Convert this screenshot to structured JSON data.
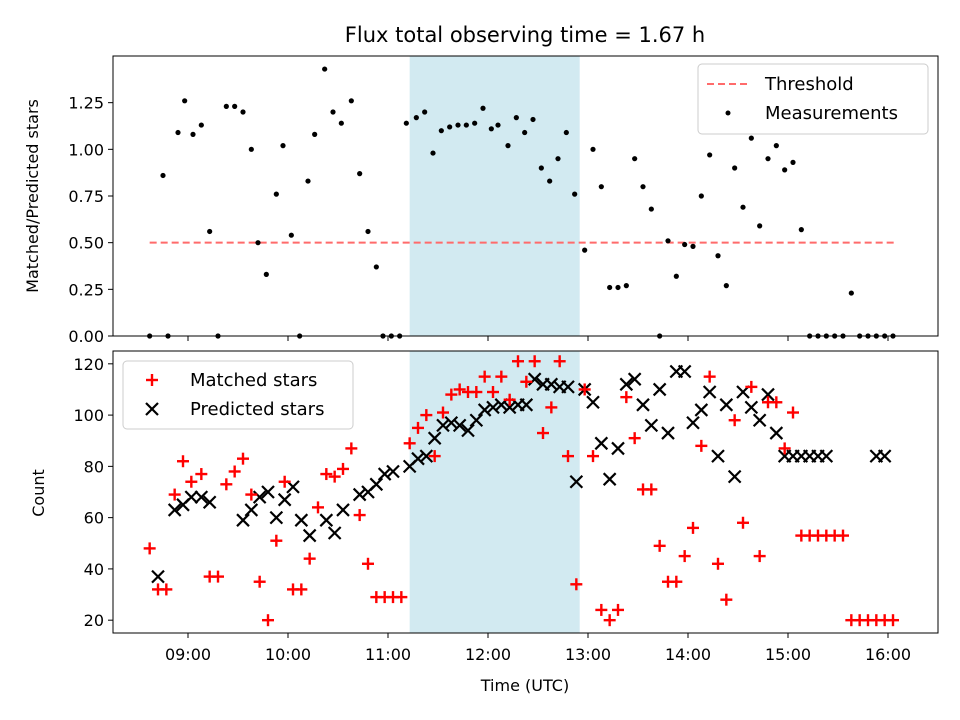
{
  "chart_data": [
    {
      "type": "scatter",
      "title": "Flux total observing time = 1.67 h",
      "xlabel": "",
      "ylabel": "Matched/Predicted stars",
      "xlim": [
        "08:15",
        "16:30"
      ],
      "ylim": [
        0,
        1.5
      ],
      "yticks": [
        0,
        0.25,
        0.5,
        0.75,
        1.0,
        1.25
      ],
      "ytick_labels": [
        "0.00",
        "0.25",
        "0.50",
        "0.75",
        "1.00",
        "1.25"
      ],
      "shaded_region": {
        "x0": "11:13",
        "x1": "12:55",
        "color": "#add8e6"
      },
      "legend_position": "top-right",
      "threshold": {
        "name": "Threshold",
        "value": 0.5,
        "x0": "08:37",
        "x1": "16:05",
        "color": "#ff6b6b",
        "style": "dashed"
      },
      "series": [
        {
          "name": "Measurements",
          "color": "#000000",
          "marker": "dot",
          "x": [
            "08:37",
            "08:45",
            "08:48",
            "08:54",
            "08:58",
            "09:03",
            "09:08",
            "09:13",
            "09:18",
            "09:23",
            "09:28",
            "09:33",
            "09:38",
            "09:42",
            "09:47",
            "09:53",
            "09:57",
            "10:02",
            "10:07",
            "10:12",
            "10:16",
            "10:22",
            "10:27",
            "10:32",
            "10:38",
            "10:43",
            "10:48",
            "10:53",
            "10:57",
            "11:02",
            "11:07",
            "11:11",
            "11:17",
            "11:22",
            "11:27",
            "11:32",
            "11:37",
            "11:42",
            "11:47",
            "11:52",
            "11:57",
            "12:02",
            "12:06",
            "12:12",
            "12:17",
            "12:22",
            "12:27",
            "12:32",
            "12:37",
            "12:42",
            "12:47",
            "12:52",
            "12:58",
            "13:03",
            "13:08",
            "13:13",
            "13:18",
            "13:23",
            "13:28",
            "13:33",
            "13:38",
            "13:43",
            "13:48",
            "13:53",
            "13:58",
            "14:03",
            "14:08",
            "14:13",
            "14:18",
            "14:23",
            "14:28",
            "14:33",
            "14:38",
            "14:43",
            "14:48",
            "14:53",
            "14:58",
            "15:03",
            "15:08",
            "15:13",
            "15:18",
            "15:23",
            "15:28",
            "15:33",
            "15:38",
            "15:43",
            "15:48",
            "15:53",
            "15:58",
            "16:03"
          ],
          "values": [
            0.0,
            0.86,
            0.0,
            1.09,
            1.26,
            1.08,
            1.13,
            0.56,
            0.0,
            1.23,
            1.23,
            1.2,
            1.0,
            0.5,
            0.33,
            0.76,
            1.02,
            0.54,
            0.0,
            0.83,
            1.08,
            1.43,
            1.2,
            1.14,
            1.26,
            0.87,
            0.56,
            0.37,
            0.0,
            0.0,
            0.0,
            1.14,
            1.17,
            1.2,
            0.98,
            1.1,
            1.12,
            1.13,
            1.13,
            1.14,
            1.22,
            1.11,
            1.13,
            1.02,
            1.17,
            1.09,
            1.16,
            0.9,
            0.83,
            0.95,
            1.09,
            0.76,
            0.46,
            1.0,
            0.8,
            0.26,
            0.26,
            0.27,
            0.95,
            0.8,
            0.68,
            0.0,
            0.51,
            0.32,
            0.49,
            0.48,
            0.75,
            0.97,
            0.43,
            0.27,
            0.9,
            0.69,
            1.06,
            0.59,
            0.95,
            1.02,
            0.89,
            0.93,
            0.57,
            0.0,
            0.0,
            0.0,
            0.0,
            0.0,
            0.23,
            0.0,
            0.0,
            0.0,
            0.0,
            0.0
          ]
        }
      ]
    },
    {
      "type": "scatter",
      "title": "",
      "xlabel": "Time (UTC)",
      "ylabel": "Count",
      "xlim": [
        "08:15",
        "16:30"
      ],
      "ylim": [
        15,
        125
      ],
      "yticks": [
        20,
        40,
        60,
        80,
        100,
        120
      ],
      "ytick_labels": [
        "20",
        "40",
        "60",
        "80",
        "100",
        "120"
      ],
      "xtick_labels": [
        "09:00",
        "10:00",
        "11:00",
        "12:00",
        "13:00",
        "14:00",
        "15:00",
        "16:00"
      ],
      "shaded_region": {
        "x0": "11:13",
        "x1": "12:55",
        "color": "#add8e6"
      },
      "legend_position": "top-left",
      "series": [
        {
          "name": "Matched stars",
          "color": "#ff0000",
          "marker": "plus",
          "x": [
            "08:37",
            "08:42",
            "08:47",
            "08:52",
            "08:57",
            "09:02",
            "09:08",
            "09:13",
            "09:18",
            "09:23",
            "09:28",
            "09:33",
            "09:38",
            "09:43",
            "09:48",
            "09:53",
            "09:58",
            "10:03",
            "10:08",
            "10:13",
            "10:18",
            "10:23",
            "10:28",
            "10:33",
            "10:38",
            "10:43",
            "10:48",
            "10:53",
            "10:58",
            "11:03",
            "11:08",
            "11:13",
            "11:18",
            "11:23",
            "11:28",
            "11:33",
            "11:38",
            "11:43",
            "11:48",
            "11:53",
            "11:58",
            "12:03",
            "12:08",
            "12:13",
            "12:18",
            "12:23",
            "12:28",
            "12:33",
            "12:38",
            "12:43",
            "12:48",
            "12:53",
            "12:58",
            "13:03",
            "13:08",
            "13:13",
            "13:18",
            "13:23",
            "13:28",
            "13:33",
            "13:38",
            "13:43",
            "13:48",
            "13:53",
            "13:58",
            "14:03",
            "14:08",
            "14:13",
            "14:18",
            "14:23",
            "14:28",
            "14:33",
            "14:38",
            "14:43",
            "14:48",
            "14:53",
            "14:58",
            "15:03",
            "15:08",
            "15:13",
            "15:18",
            "15:23",
            "15:28",
            "15:33",
            "15:38",
            "15:43",
            "15:48",
            "15:53",
            "15:58",
            "16:03"
          ],
          "values": [
            48,
            32,
            32,
            69,
            82,
            74,
            77,
            37,
            37,
            73,
            78,
            83,
            69,
            35,
            20,
            51,
            74,
            32,
            32,
            44,
            64,
            77,
            76,
            79,
            87,
            61,
            42,
            29,
            29,
            29,
            29,
            89,
            95,
            100,
            84,
            101,
            108,
            110,
            109,
            109,
            115,
            109,
            115,
            106,
            121,
            113,
            121,
            93,
            103,
            121,
            84,
            34,
            110,
            84,
            24,
            20,
            24,
            107,
            91,
            71,
            71,
            49,
            35,
            35,
            45,
            56,
            88,
            115,
            42,
            28,
            98,
            58,
            111,
            45,
            105,
            105,
            87,
            101,
            53,
            53,
            53,
            53,
            53,
            53,
            20,
            20,
            20,
            20,
            20,
            20
          ]
        },
        {
          "name": "Predicted stars",
          "color": "#000000",
          "marker": "x",
          "x": [
            "08:42",
            "08:52",
            "08:57",
            "09:02",
            "09:08",
            "09:13",
            "09:33",
            "09:38",
            "09:43",
            "09:48",
            "09:53",
            "09:58",
            "10:03",
            "10:08",
            "10:13",
            "10:23",
            "10:28",
            "10:33",
            "10:43",
            "10:48",
            "10:53",
            "10:58",
            "11:03",
            "11:13",
            "11:18",
            "11:23",
            "11:28",
            "11:33",
            "11:38",
            "11:43",
            "11:48",
            "11:53",
            "11:58",
            "12:03",
            "12:08",
            "12:13",
            "12:18",
            "12:23",
            "12:28",
            "12:33",
            "12:38",
            "12:43",
            "12:48",
            "12:53",
            "12:58",
            "13:03",
            "13:08",
            "13:13",
            "13:18",
            "13:23",
            "13:28",
            "13:33",
            "13:38",
            "13:43",
            "13:48",
            "13:53",
            "13:58",
            "14:03",
            "14:08",
            "14:13",
            "14:18",
            "14:23",
            "14:28",
            "14:33",
            "14:38",
            "14:43",
            "14:48",
            "14:53",
            "14:58",
            "15:03",
            "15:08",
            "15:13",
            "15:18",
            "15:23",
            "15:53",
            "15:58"
          ],
          "values": [
            37,
            63,
            65,
            68,
            68,
            66,
            59,
            63,
            68,
            70,
            60,
            67,
            72,
            59,
            53,
            59,
            54,
            63,
            69,
            70,
            73,
            77,
            78,
            80,
            83,
            84,
            91,
            96,
            97,
            96,
            94,
            98,
            102,
            103,
            104,
            103,
            104,
            104,
            114,
            112,
            112,
            111,
            111,
            74,
            110,
            105,
            89,
            75,
            87,
            112,
            114,
            104,
            96,
            110,
            93,
            117,
            117,
            97,
            102,
            109,
            84,
            104,
            76,
            109,
            103,
            98,
            108,
            93,
            84,
            84,
            84,
            84,
            84,
            84,
            84,
            84
          ]
        }
      ]
    }
  ]
}
